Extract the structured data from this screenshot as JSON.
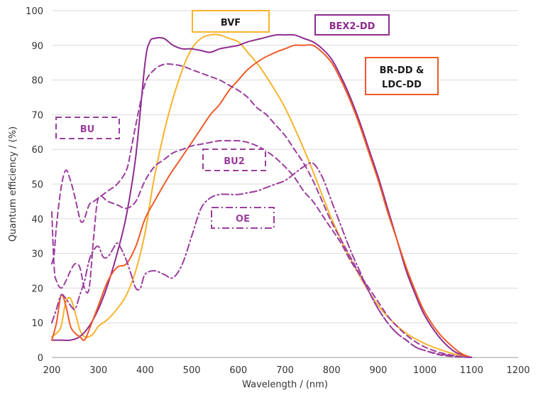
{
  "chart_data": {
    "type": "line",
    "xlabel": "Wavelength / (nm)",
    "ylabel": "Quantum efficiency / (%)",
    "xlim": [
      200,
      1200
    ],
    "ylim": [
      0,
      100
    ],
    "xticks": [
      "200",
      "300",
      "400",
      "500",
      "600",
      "700",
      "800",
      "900",
      "1000",
      "1100",
      "1200"
    ],
    "yticks": [
      "0",
      "10",
      "20",
      "30",
      "40",
      "50",
      "60",
      "70",
      "80",
      "90",
      "100"
    ],
    "grid": "horizontal",
    "legend_placement": "boxed labels inside plot",
    "series": [
      {
        "name": "BVF",
        "color": "#F7B32B",
        "dash": "solid",
        "x": [
          200,
          210,
          220,
          230,
          240,
          250,
          260,
          270,
          280,
          290,
          300,
          320,
          340,
          360,
          380,
          400,
          420,
          450,
          480,
          500,
          520,
          540,
          560,
          580,
          600,
          620,
          650,
          700,
          750,
          800,
          850,
          900,
          950,
          1000,
          1050,
          1080,
          1100
        ],
        "y": [
          6,
          7,
          9,
          16,
          17,
          13,
          8,
          6,
          6,
          7,
          9,
          11,
          14,
          18,
          25,
          36,
          52,
          70,
          83,
          89,
          92,
          93,
          93,
          92,
          91,
          88,
          83,
          72,
          57,
          40,
          26,
          15,
          8,
          4,
          1.5,
          0.5,
          0
        ]
      },
      {
        "name": "BEX2-DD",
        "color": "#8E2C8E",
        "dash": "solid",
        "x": [
          200,
          220,
          240,
          260,
          280,
          300,
          320,
          340,
          360,
          380,
          400,
          410,
          420,
          440,
          460,
          480,
          500,
          520,
          540,
          560,
          580,
          600,
          620,
          650,
          680,
          700,
          720,
          740,
          760,
          780,
          800,
          820,
          840,
          860,
          880,
          900,
          920,
          940,
          960,
          980,
          1000,
          1030,
          1060,
          1080,
          1100
        ],
        "y": [
          5,
          5,
          5,
          6,
          9,
          14,
          21,
          30,
          41,
          58,
          85,
          91,
          92,
          92,
          90,
          89,
          89,
          88.5,
          88,
          89,
          89.5,
          90,
          91,
          92,
          93,
          93,
          93,
          92,
          91,
          89,
          86,
          81,
          75,
          68,
          60,
          52,
          43,
          34,
          25,
          18,
          12,
          6,
          2,
          0.8,
          0
        ]
      },
      {
        "name": "BR-DD & LDC-DD",
        "color": "#F05A28",
        "dash": "solid",
        "x": [
          200,
          210,
          220,
          230,
          240,
          250,
          260,
          270,
          280,
          300,
          320,
          340,
          360,
          380,
          400,
          420,
          450,
          480,
          500,
          520,
          540,
          560,
          580,
          600,
          620,
          650,
          680,
          700,
          720,
          740,
          760,
          780,
          800,
          820,
          840,
          860,
          880,
          900,
          920,
          940,
          960,
          980,
          1000,
          1030,
          1060,
          1080,
          1100
        ],
        "y": [
          5,
          10,
          18,
          15,
          9,
          7,
          6,
          5,
          8,
          15,
          22,
          26,
          27,
          32,
          40,
          45,
          52,
          58,
          62,
          66,
          70,
          73,
          77,
          80,
          83,
          86,
          88,
          89,
          90,
          90,
          90,
          88,
          85,
          80,
          74,
          67,
          59,
          51,
          42,
          34,
          26,
          19,
          13,
          7,
          3,
          1,
          0
        ]
      },
      {
        "name": "BU",
        "color": "#9B3D9E",
        "dash": "dashed",
        "x": [
          200,
          205,
          210,
          220,
          230,
          240,
          250,
          260,
          265,
          270,
          280,
          290,
          300,
          320,
          340,
          360,
          370,
          380,
          400,
          420,
          440,
          460,
          480,
          500,
          520,
          540,
          560,
          580,
          600,
          620,
          640,
          660,
          680,
          700,
          720,
          740,
          760,
          780,
          800,
          820,
          840,
          860,
          880,
          900,
          920,
          940,
          960,
          980,
          1000,
          1030,
          1060,
          1080,
          1100
        ],
        "y": [
          27,
          30,
          38,
          49,
          54,
          51,
          46,
          40,
          39,
          40,
          44,
          45,
          46,
          48,
          50,
          54,
          60,
          67,
          79,
          83,
          84.5,
          84.5,
          84,
          83,
          82,
          81,
          80,
          78.5,
          77,
          75,
          72,
          70,
          67,
          64,
          60,
          56,
          51,
          45,
          39,
          34,
          29,
          24,
          19,
          14,
          10,
          7,
          5,
          3,
          2,
          0.8,
          0.3,
          0.1,
          0
        ]
      },
      {
        "name": "BU2",
        "color": "#9B3D9E",
        "dash": "dashed",
        "x": [
          200,
          205,
          210,
          220,
          230,
          240,
          250,
          260,
          270,
          280,
          290,
          300,
          320,
          340,
          360,
          380,
          400,
          420,
          440,
          460,
          480,
          500,
          520,
          540,
          560,
          580,
          600,
          620,
          640,
          660,
          680,
          700,
          720,
          740,
          760,
          780,
          800,
          820,
          840,
          860,
          880,
          900,
          920,
          940,
          960,
          980,
          1000,
          1030,
          1060,
          1080,
          1100
        ],
        "y": [
          42,
          26,
          22,
          20,
          22,
          25,
          27,
          26,
          20,
          20,
          35,
          46,
          45,
          44,
          43,
          45,
          51,
          55,
          57,
          59,
          60,
          61,
          61.5,
          62,
          62.5,
          62.5,
          62.5,
          62,
          61,
          59.5,
          57.5,
          55,
          52,
          48,
          45,
          41,
          37,
          33,
          28,
          24,
          20,
          16,
          12,
          9,
          6.5,
          4.5,
          3,
          1.5,
          0.6,
          0.2,
          0
        ]
      },
      {
        "name": "OE",
        "color": "#9B3D9E",
        "dash": "dashdot",
        "x": [
          200,
          210,
          220,
          230,
          240,
          250,
          260,
          270,
          280,
          290,
          300,
          310,
          320,
          330,
          340,
          350,
          360,
          370,
          380,
          390,
          400,
          420,
          440,
          460,
          480,
          500,
          520,
          540,
          560,
          580,
          600,
          620,
          640,
          660,
          680,
          700,
          720,
          740,
          760,
          780,
          800,
          820,
          840,
          860,
          880,
          900,
          920,
          940,
          960,
          980,
          1000,
          1030,
          1060,
          1080,
          1100
        ],
        "y": [
          10,
          14,
          18,
          17,
          15,
          14,
          18,
          22,
          28,
          31,
          32,
          29,
          29,
          31,
          33,
          31,
          28,
          24,
          20,
          20,
          24,
          25,
          24,
          23,
          27,
          35,
          43,
          46,
          47,
          47,
          47,
          47.5,
          48,
          49,
          50,
          51,
          53,
          55,
          56,
          52,
          45,
          38,
          31,
          25,
          19,
          14,
          10,
          7,
          5,
          3,
          2,
          1,
          0.5,
          0.2,
          0
        ]
      }
    ],
    "annotations": [
      "BVF",
      "BEX2-DD",
      "BR-DD &\nLDC-DD",
      "BU",
      "BU2",
      "OE"
    ]
  },
  "labels": {
    "bvf": "BVF",
    "bex2": "BEX2-DD",
    "brdd_line1": "BR-DD &",
    "brdd_line2": "LDC-DD",
    "bu": "BU",
    "bu2": "BU2",
    "oe": "OE"
  }
}
